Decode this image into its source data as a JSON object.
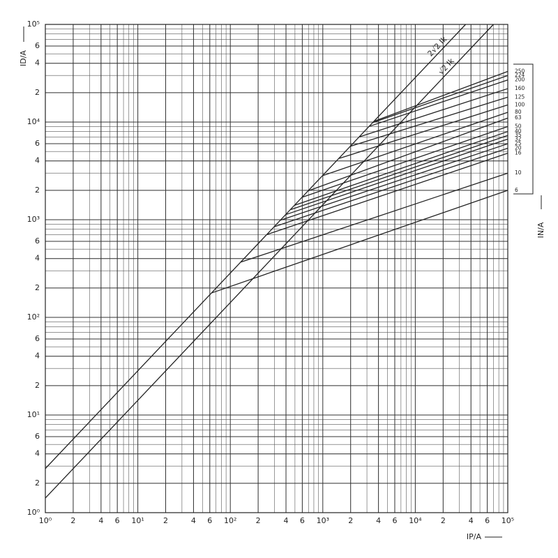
{
  "chart_data": {
    "type": "line",
    "log_x": true,
    "log_y": true,
    "grid": true,
    "xlabel": "IP/A",
    "ylabel": "ID/A",
    "y2label": "IN/A",
    "xlim": [
      1,
      100000
    ],
    "ylim": [
      1,
      100000
    ],
    "xticks": [
      {
        "value": 1,
        "label": "10⁰"
      },
      2,
      4,
      6,
      {
        "value": 10,
        "label": "10¹"
      },
      {
        "value": 20,
        "label": "2"
      },
      {
        "value": 40,
        "label": "4"
      },
      {
        "value": 60,
        "label": "6"
      },
      {
        "value": 100,
        "label": "10²"
      },
      {
        "value": 200,
        "label": "2"
      },
      {
        "value": 400,
        "label": "4"
      },
      {
        "value": 600,
        "label": "6"
      },
      {
        "value": 1000,
        "label": "10³"
      },
      {
        "value": 2000,
        "label": "2"
      },
      {
        "value": 4000,
        "label": "4"
      },
      {
        "value": 6000,
        "label": "6"
      },
      {
        "value": 10000,
        "label": "10⁴"
      },
      {
        "value": 20000,
        "label": "2"
      },
      {
        "value": 40000,
        "label": "4"
      },
      {
        "value": 60000,
        "label": "6"
      },
      {
        "value": 100000,
        "label": "10⁵"
      }
    ],
    "yticks": [
      {
        "value": 1,
        "label": "10⁰"
      },
      2,
      4,
      6,
      {
        "value": 10,
        "label": "10¹"
      },
      {
        "value": 20,
        "label": "2"
      },
      {
        "value": 40,
        "label": "4"
      },
      {
        "value": 60,
        "label": "6"
      },
      {
        "value": 100,
        "label": "10²"
      },
      {
        "value": 200,
        "label": "2"
      },
      {
        "value": 400,
        "label": "4"
      },
      {
        "value": 600,
        "label": "6"
      },
      {
        "value": 1000,
        "label": "10³"
      },
      {
        "value": 2000,
        "label": "2"
      },
      {
        "value": 4000,
        "label": "4"
      },
      {
        "value": 6000,
        "label": "6"
      },
      {
        "value": 10000,
        "label": "10⁴"
      },
      {
        "value": 20000,
        "label": "2"
      },
      {
        "value": 40000,
        "label": "4"
      },
      {
        "value": 60000,
        "label": "6"
      },
      {
        "value": 100000,
        "label": "10⁵"
      }
    ],
    "series": [
      {
        "name": "2√2 Ik",
        "color": "#222",
        "x": [
          1,
          35000
        ],
        "values": [
          2.83,
          100000
        ]
      },
      {
        "name": "√2 Ik",
        "color": "#222",
        "x": [
          1,
          70000
        ],
        "values": [
          1.41,
          100000
        ]
      },
      {
        "name": "6",
        "color": "#222",
        "x": [
          63,
          100000
        ],
        "values": [
          178,
          2000
        ]
      },
      {
        "name": "10",
        "color": "#222",
        "x": [
          130,
          100000
        ],
        "values": [
          368,
          3000
        ]
      },
      {
        "name": "16",
        "color": "#222",
        "x": [
          250,
          100000
        ],
        "values": [
          707,
          4800
        ]
      },
      {
        "name": "20",
        "color": "#222",
        "x": [
          300,
          100000
        ],
        "values": [
          849,
          5400
        ]
      },
      {
        "name": "25",
        "color": "#222",
        "x": [
          350,
          100000
        ],
        "values": [
          990,
          6000
        ]
      },
      {
        "name": "32",
        "color": "#222",
        "x": [
          400,
          100000
        ],
        "values": [
          1130,
          6700
        ]
      },
      {
        "name": "35",
        "color": "#222",
        "x": [
          450,
          100000
        ],
        "values": [
          1270,
          7300
        ]
      },
      {
        "name": "40",
        "color": "#222",
        "x": [
          500,
          100000
        ],
        "values": [
          1410,
          8000
        ]
      },
      {
        "name": "50",
        "color": "#222",
        "x": [
          600,
          100000
        ],
        "values": [
          1700,
          9000
        ]
      },
      {
        "name": "63",
        "color": "#222",
        "x": [
          700,
          100000
        ],
        "values": [
          1980,
          11000
        ]
      },
      {
        "name": "80",
        "color": "#222",
        "x": [
          1000,
          100000
        ],
        "values": [
          2830,
          12600
        ]
      },
      {
        "name": "100",
        "color": "#222",
        "x": [
          1500,
          100000
        ],
        "values": [
          4240,
          15000
        ]
      },
      {
        "name": "125",
        "color": "#222",
        "x": [
          2000,
          100000
        ],
        "values": [
          5660,
          18000
        ]
      },
      {
        "name": "160",
        "color": "#222",
        "x": [
          2500,
          100000
        ],
        "values": [
          7070,
          22000
        ]
      },
      {
        "name": "200",
        "color": "#222",
        "x": [
          3200,
          100000
        ],
        "values": [
          9050,
          27000
        ]
      },
      {
        "name": "224",
        "color": "#222",
        "x": [
          3500,
          100000
        ],
        "values": [
          9900,
          30000
        ]
      },
      {
        "name": "250",
        "color": "#222",
        "x": [
          3600,
          100000
        ],
        "values": [
          10200,
          33000
        ]
      }
    ]
  }
}
